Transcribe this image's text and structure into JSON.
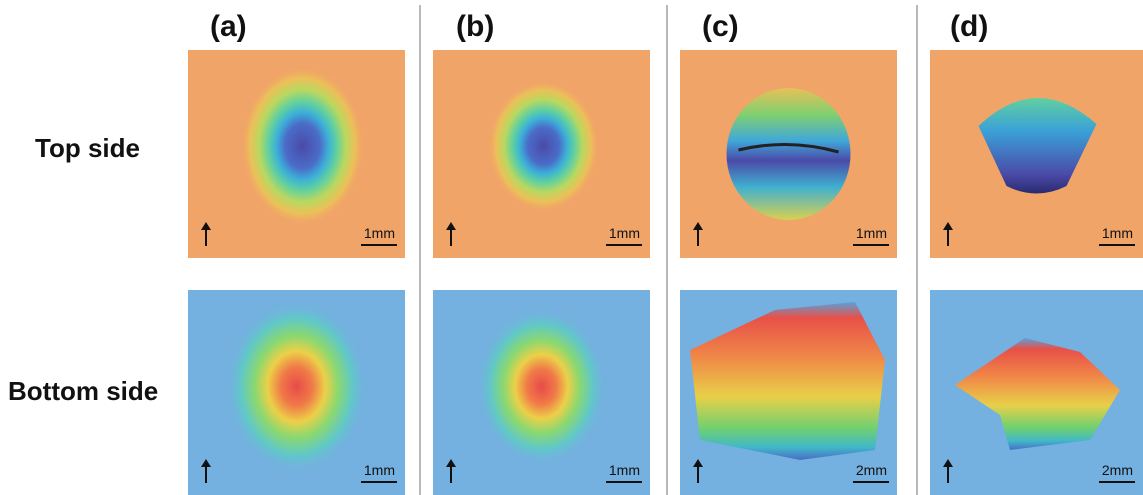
{
  "columns": [
    {
      "label": "(a)"
    },
    {
      "label": "(b)"
    },
    {
      "label": "(c)"
    },
    {
      "label": "(d)"
    }
  ],
  "rows": [
    {
      "label": "Top side",
      "scale_bars": [
        "1mm",
        "1mm",
        "1mm",
        "1mm"
      ]
    },
    {
      "label": "Bottom side",
      "scale_bars": [
        "1mm",
        "1mm",
        "2mm",
        "2mm"
      ]
    }
  ]
}
